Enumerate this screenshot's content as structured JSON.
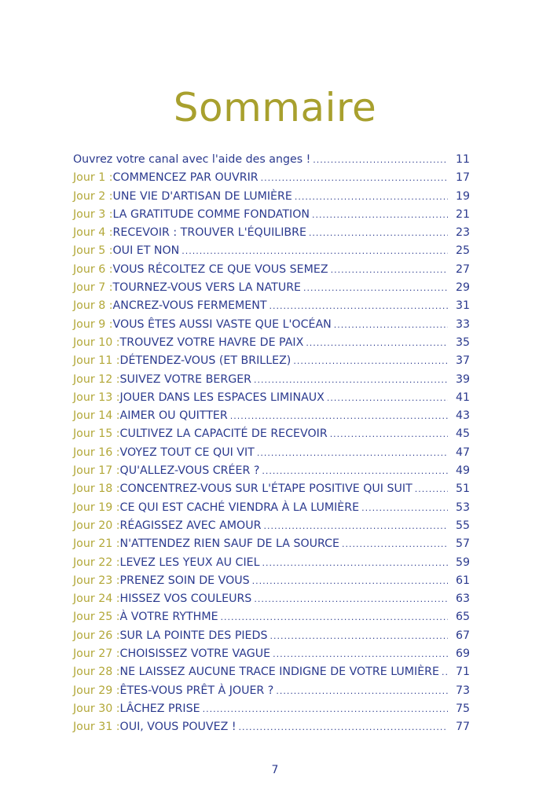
{
  "title": "Sommaire",
  "folio": "7",
  "colors": {
    "title": "#a8a02e",
    "day_prefix": "#b3a83a",
    "entry": "#2b3a8e"
  },
  "entries": [
    {
      "prefix": "",
      "label": "Ouvrez votre canal avec l'aide des anges !",
      "page": "11"
    },
    {
      "prefix": "Jour 1 : ",
      "label": "COMMENCEZ PAR OUVRIR",
      "page": "17"
    },
    {
      "prefix": "Jour 2 : ",
      "label": "UNE VIE D'ARTISAN DE LUMIÈRE",
      "page": "19"
    },
    {
      "prefix": "Jour 3 : ",
      "label": "LA GRATITUDE COMME FONDATION",
      "page": "21"
    },
    {
      "prefix": "Jour 4 : ",
      "label": "RECEVOIR : TROUVER L'ÉQUILIBRE",
      "page": "23"
    },
    {
      "prefix": "Jour 5 : ",
      "label": "OUI ET NON",
      "page": "25"
    },
    {
      "prefix": "Jour 6 : ",
      "label": "VOUS RÉCOLTEZ CE QUE VOUS SEMEZ",
      "page": "27"
    },
    {
      "prefix": "Jour 7 : ",
      "label": "TOURNEZ-VOUS VERS LA NATURE",
      "page": "29"
    },
    {
      "prefix": "Jour 8 : ",
      "label": "ANCREZ-VOUS FERMEMENT",
      "page": "31"
    },
    {
      "prefix": "Jour 9 : ",
      "label": "VOUS ÊTES AUSSI VASTE QUE L'OCÉAN",
      "page": "33"
    },
    {
      "prefix": "Jour 10 : ",
      "label": "TROUVEZ VOTRE HAVRE DE PAIX",
      "page": "35"
    },
    {
      "prefix": "Jour 11 : ",
      "label": "DÉTENDEZ-VOUS (ET BRILLEZ)",
      "page": "37"
    },
    {
      "prefix": "Jour 12 : ",
      "label": "SUIVEZ VOTRE BERGER",
      "page": "39"
    },
    {
      "prefix": "Jour 13 : ",
      "label": "JOUER DANS LES ESPACES LIMINAUX",
      "page": "41"
    },
    {
      "prefix": "Jour 14 : ",
      "label": "AIMER OU QUITTER",
      "page": "43"
    },
    {
      "prefix": "Jour 15 : ",
      "label": "CULTIVEZ LA CAPACITÉ DE RECEVOIR",
      "page": "45"
    },
    {
      "prefix": "Jour 16 : ",
      "label": "VOYEZ TOUT CE QUI VIT",
      "page": "47"
    },
    {
      "prefix": "Jour 17 : ",
      "label": "QU'ALLEZ-VOUS CRÉER ?",
      "page": "49"
    },
    {
      "prefix": "Jour 18 : ",
      "label": "CONCENTREZ-VOUS SUR L'ÉTAPE POSITIVE QUI SUIT",
      "page": "51"
    },
    {
      "prefix": "Jour 19 : ",
      "label": "CE QUI EST CACHÉ VIENDRA À LA LUMIÈRE",
      "page": "53"
    },
    {
      "prefix": "Jour 20 : ",
      "label": "RÉAGISSEZ AVEC AMOUR",
      "page": "55"
    },
    {
      "prefix": "Jour 21 : ",
      "label": "N'ATTENDEZ RIEN SAUF DE LA SOURCE",
      "page": "57"
    },
    {
      "prefix": "Jour 22 : ",
      "label": "LEVEZ LES YEUX AU CIEL",
      "page": "59"
    },
    {
      "prefix": "Jour 23 : ",
      "label": "PRENEZ SOIN DE VOUS",
      "page": "61"
    },
    {
      "prefix": "Jour 24 : ",
      "label": "HISSEZ VOS COULEURS",
      "page": "63"
    },
    {
      "prefix": "Jour 25 : ",
      "label": "À VOTRE RYTHME",
      "page": "65"
    },
    {
      "prefix": "Jour 26 : ",
      "label": "SUR LA POINTE DES PIEDS",
      "page": "67"
    },
    {
      "prefix": "Jour 27 : ",
      "label": "CHOISISSEZ VOTRE VAGUE",
      "page": "69"
    },
    {
      "prefix": "Jour 28 : ",
      "label": "NE LAISSEZ AUCUNE TRACE INDIGNE DE VOTRE LUMIÈRE",
      "page": "71"
    },
    {
      "prefix": "Jour 29 : ",
      "label": "ÊTES-VOUS PRÊT À JOUER ?",
      "page": "73"
    },
    {
      "prefix": "Jour 30 : ",
      "label": "LÂCHEZ PRISE",
      "page": "75"
    },
    {
      "prefix": "Jour 31 : ",
      "label": "OUI, VOUS POUVEZ !",
      "page": "77"
    }
  ]
}
